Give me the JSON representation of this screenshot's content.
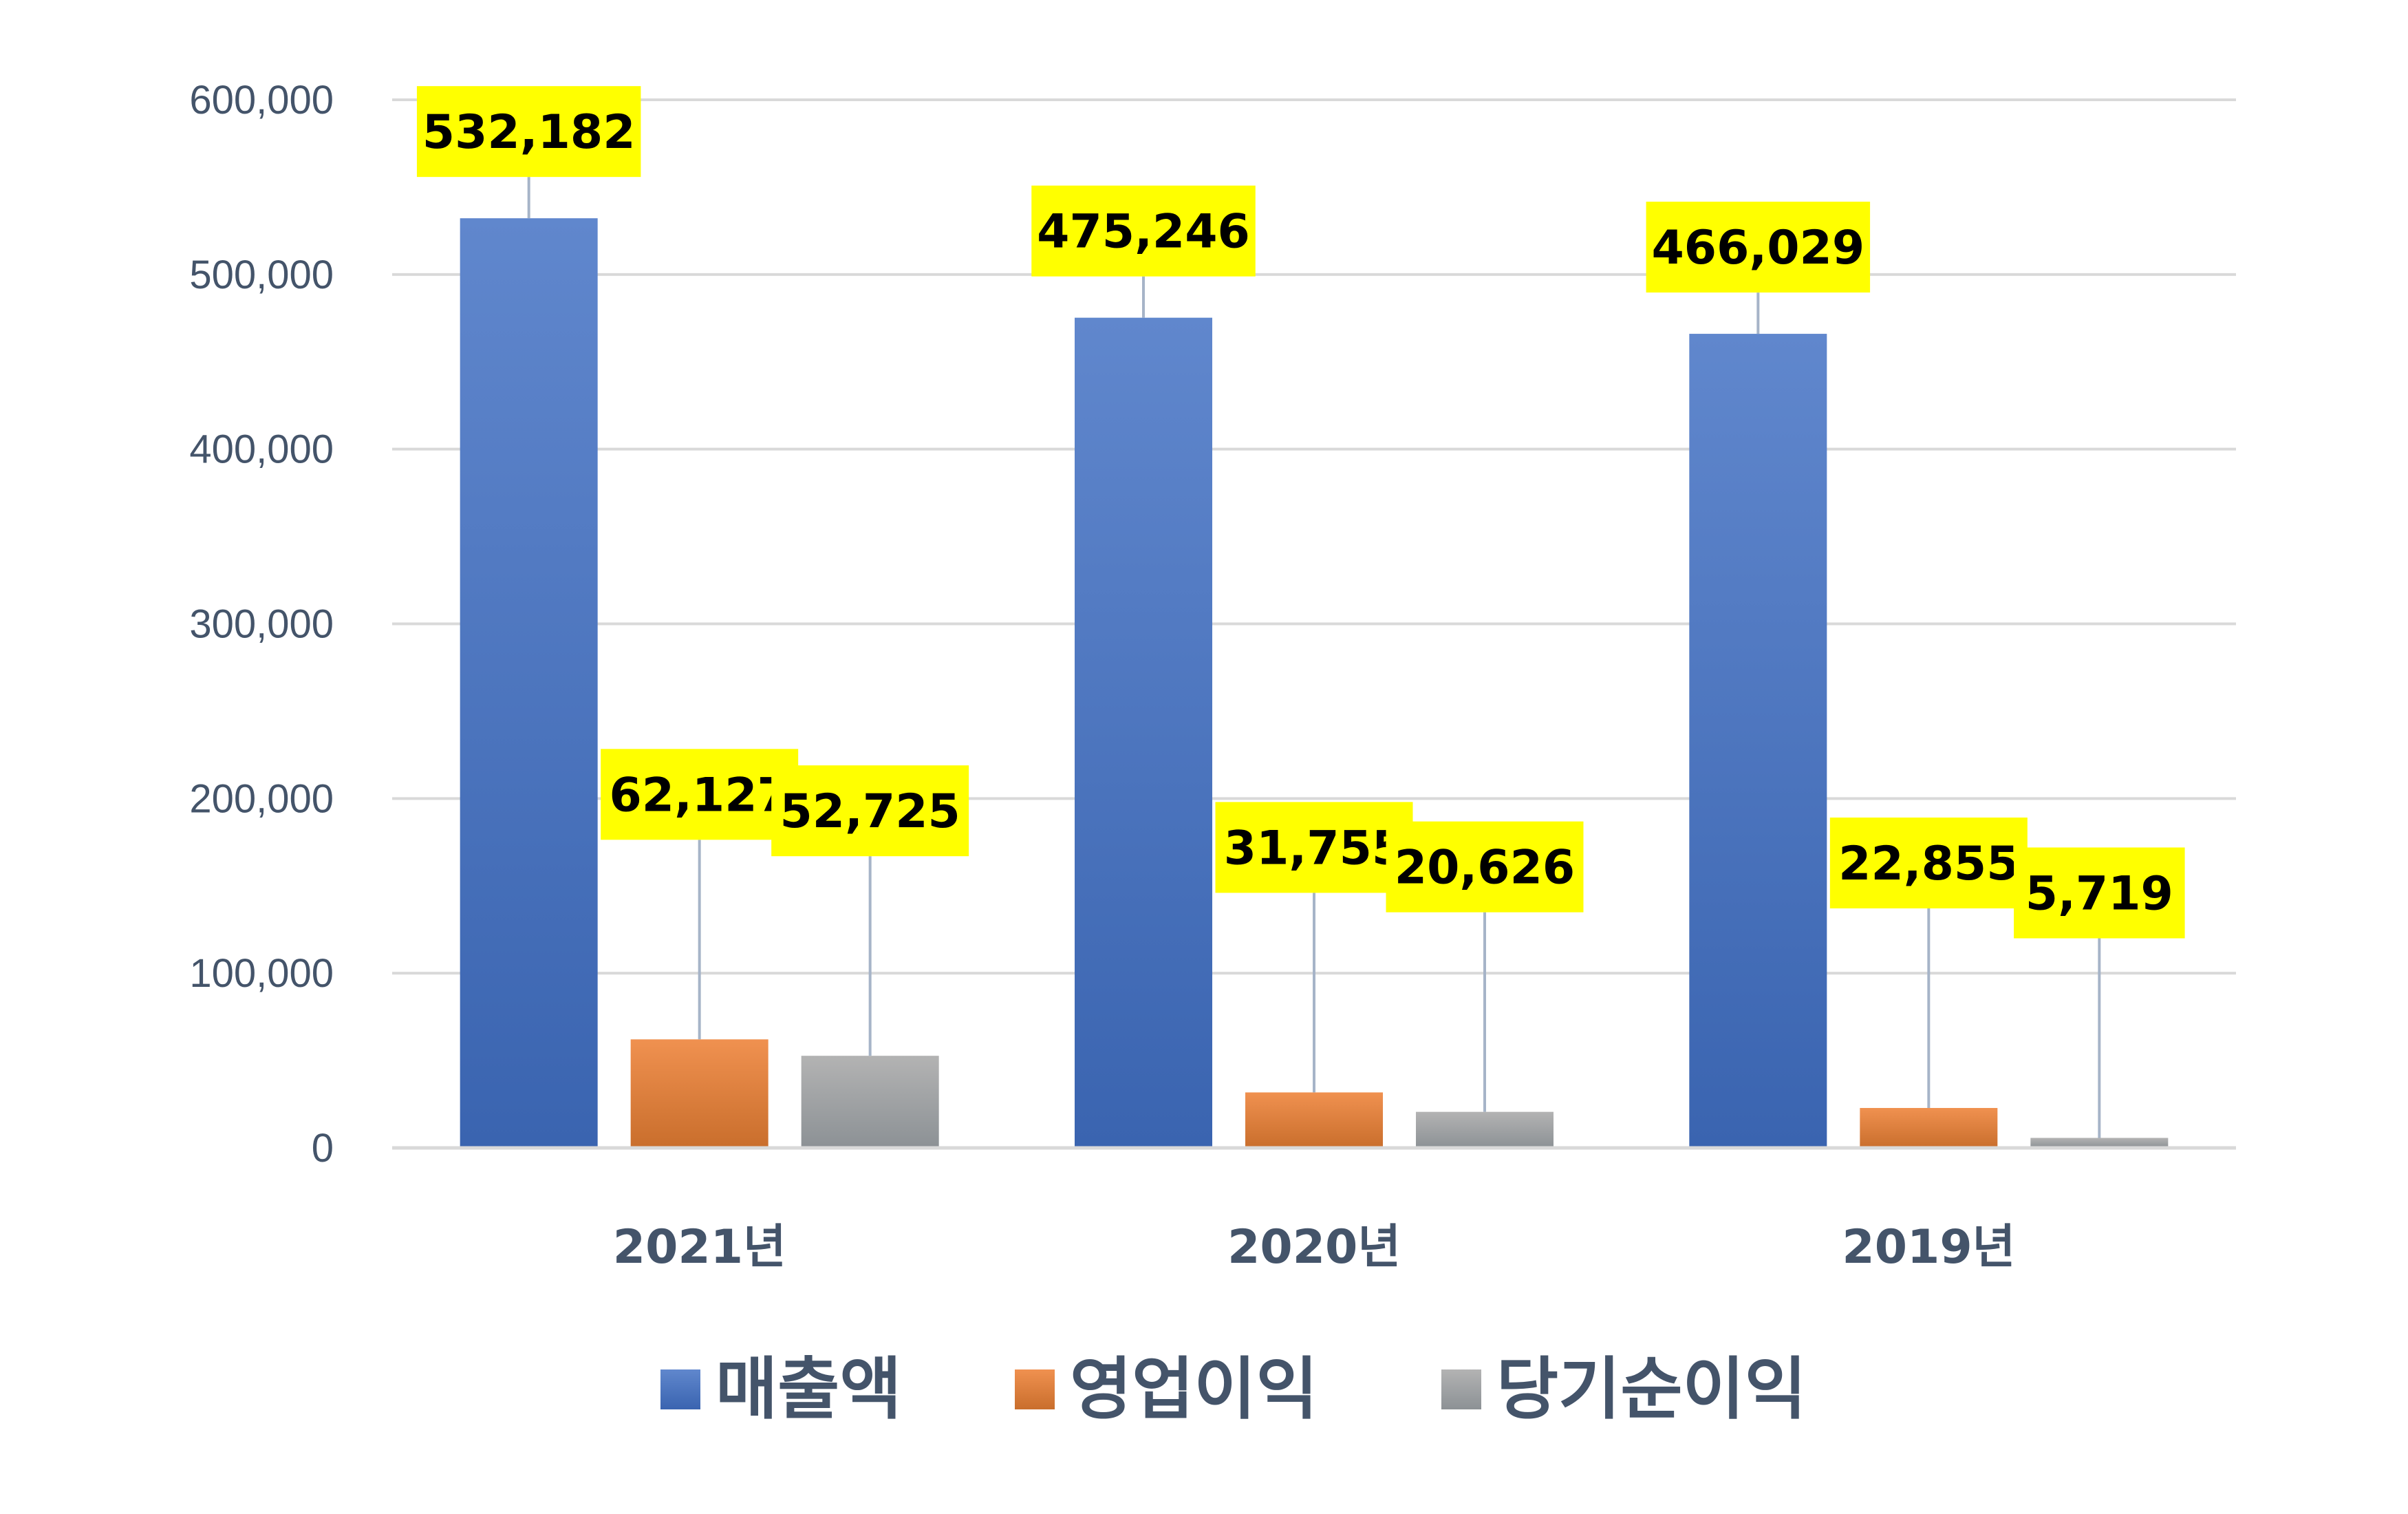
{
  "chart_data": {
    "type": "bar",
    "categories": [
      "2021년",
      "2020년",
      "2019년"
    ],
    "series": [
      {
        "name": "매출액",
        "values": [
          532182,
          475246,
          466029
        ],
        "color": "#4472c4",
        "labels": [
          "532,182",
          "475,246",
          "466,029"
        ]
      },
      {
        "name": "영업이익",
        "values": [
          62127,
          31755,
          22855
        ],
        "color": "#ed7d31",
        "labels": [
          "62,127",
          "31,755",
          "22,855"
        ]
      },
      {
        "name": "당기순이익",
        "values": [
          52725,
          20626,
          5719
        ],
        "color": "#a5a5a5",
        "labels": [
          "52,725",
          "20,626",
          "5,719"
        ]
      }
    ],
    "ylim": [
      0,
      600000
    ],
    "yticks": [
      0,
      100000,
      200000,
      300000,
      400000,
      500000,
      600000
    ],
    "ytick_labels": [
      "0",
      "100,000",
      "200,000",
      "300,000",
      "400,000",
      "500,000",
      "600,000"
    ],
    "grid": true,
    "legend_position": "bottom",
    "data_label_background": "#ffff00",
    "title": "",
    "xlabel": "",
    "ylabel": ""
  }
}
